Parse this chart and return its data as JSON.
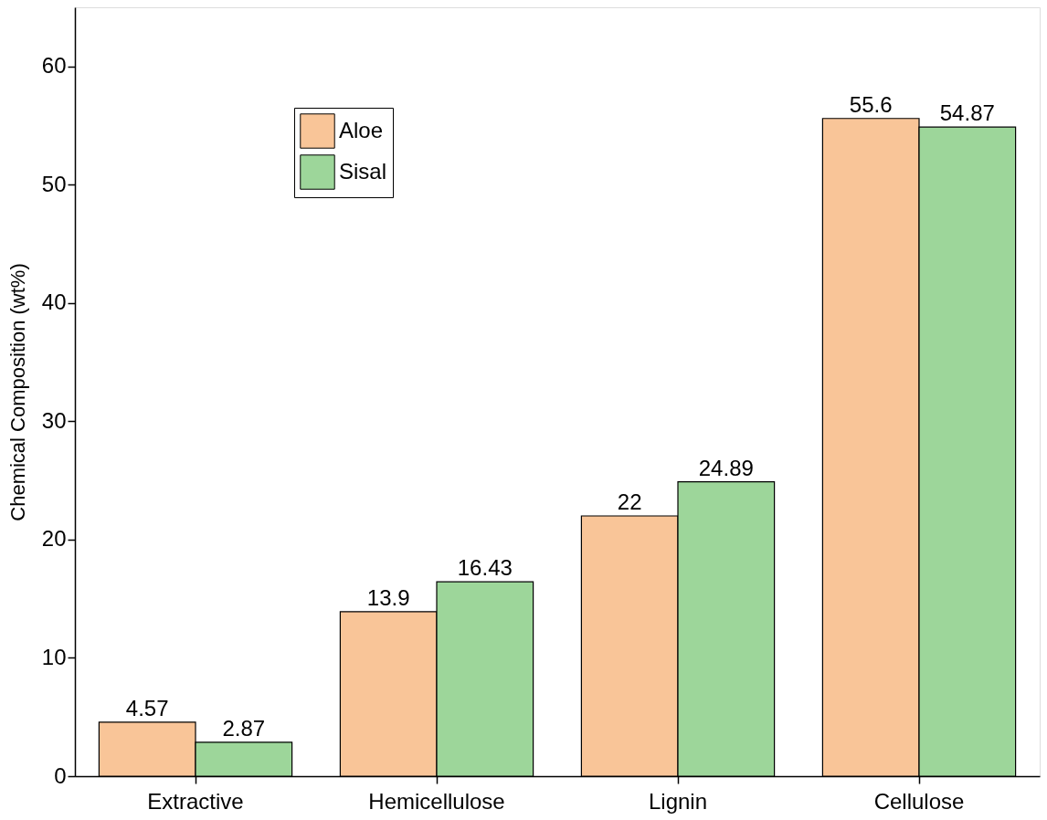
{
  "chart_data": {
    "type": "bar",
    "ylabel": "Chemical Composition (wt%)",
    "categories": [
      "Extractive",
      "Hemicellulose",
      "Lignin",
      "Cellulose"
    ],
    "series": [
      {
        "name": "Aloe",
        "color": "#f9c598",
        "values": [
          4.57,
          13.9,
          22,
          55.6
        ]
      },
      {
        "name": "Sisal",
        "color": "#9dd69a",
        "values": [
          2.87,
          16.43,
          24.89,
          54.87
        ]
      }
    ],
    "ylim": [
      0,
      65
    ],
    "yticks": [
      0,
      10,
      20,
      30,
      40,
      50,
      60
    ],
    "data_labels": true,
    "grid": false,
    "legend": "top left"
  }
}
